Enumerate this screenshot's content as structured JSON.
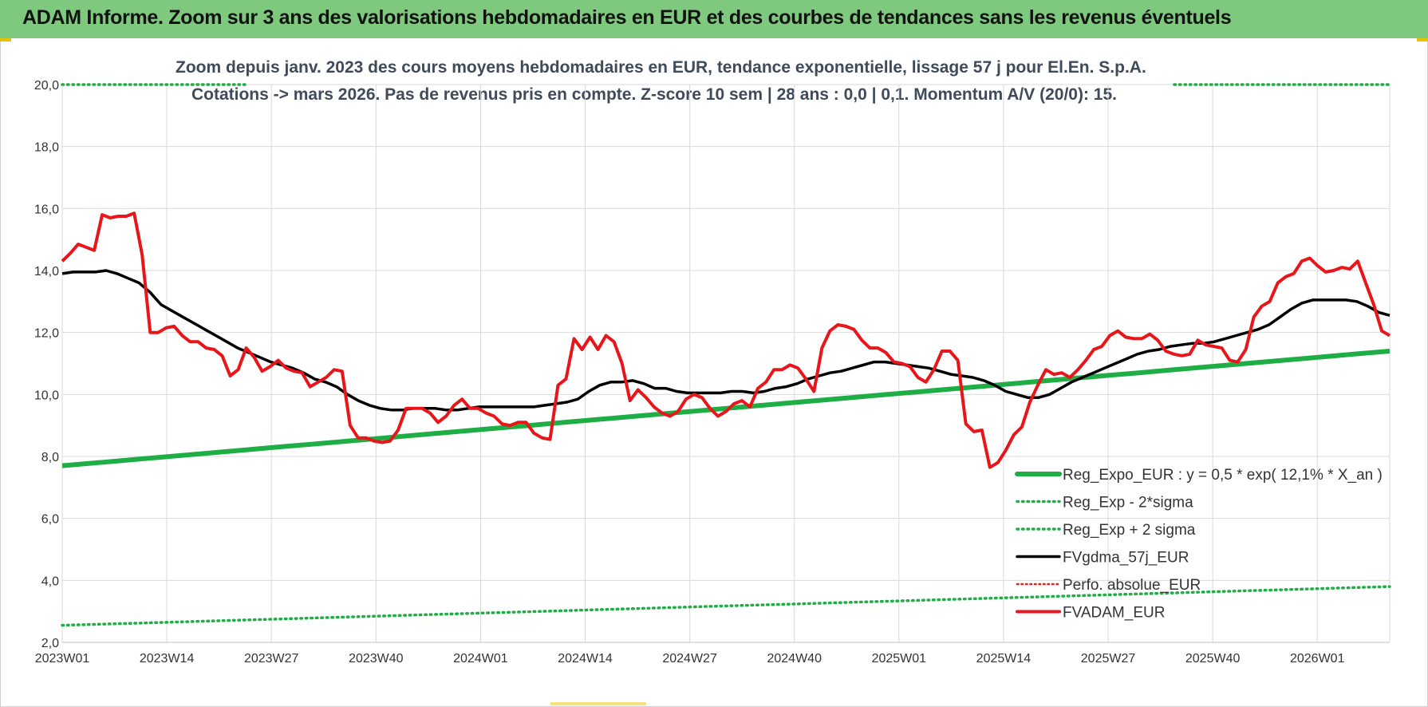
{
  "header": {
    "title": "ADAM Informe. Zoom sur 3 ans des valorisations hebdomadaires en EUR et des courbes de tendances sans les revenus éventuels"
  },
  "chart_data": {
    "type": "line",
    "title_line1": "Zoom depuis janv. 2023 des cours moyens hebdomadaires en EUR, tendance exponentielle, lissage 57 j pour El.En. S.p.A.",
    "title_line2": "Cotations -> mars 2026. Pas de revenus pris en compte. Z-score 10 sem | 28 ans : 0,0 | 0,1. Momentum A/V (20/0): 15.",
    "ylim": [
      2.0,
      20.0
    ],
    "yticks": [
      "2,0",
      "4,0",
      "6,0",
      "8,0",
      "10,0",
      "12,0",
      "14,0",
      "16,0",
      "18,0",
      "20,0"
    ],
    "xticks": [
      "2023W01",
      "2023W14",
      "2023W27",
      "2023W40",
      "2024W01",
      "2024W14",
      "2024W27",
      "2024W40",
      "2025W01",
      "2025W14",
      "2025W27",
      "2025W40",
      "2026W01"
    ],
    "grid": true,
    "legend_position": "bottom-right",
    "colors": {
      "reg_expo": "#1fae45",
      "sigma": "#1fae45",
      "fvgdma": "#000000",
      "perfo": "#e02020",
      "fvadam": "#e8161b"
    },
    "series": [
      {
        "name": "Reg_Expo_EUR : y = 0,5 * exp( 12,1% *  X_an )",
        "style": "solid-thick",
        "values": [
          7.7,
          7.8,
          7.9,
          8.0,
          8.1,
          8.2,
          8.3,
          8.4,
          8.5,
          8.6,
          8.7,
          8.8,
          8.9,
          9.0,
          9.1,
          9.2,
          9.3,
          9.4,
          9.5,
          9.6,
          9.7,
          9.8,
          9.9,
          10.0,
          10.1,
          10.2,
          10.3,
          10.4,
          10.5,
          10.6,
          10.7,
          10.8,
          10.9,
          11.0,
          11.1,
          11.2,
          11.3,
          11.4
        ]
      },
      {
        "name": "Reg_Exp - 2*sigma",
        "style": "dotted",
        "values": [
          2.55,
          2.6,
          2.65,
          2.7,
          2.75,
          2.8,
          2.85,
          2.9,
          2.95,
          3.0,
          3.05,
          3.1,
          3.15,
          3.2,
          3.25,
          3.3,
          3.35,
          3.4,
          3.45,
          3.5,
          3.55,
          3.6,
          3.65,
          3.7,
          3.75,
          3.8
        ]
      },
      {
        "name": "Reg_Exp + 2 sigma",
        "style": "dotted",
        "values": [
          20.0,
          20.0
        ]
      },
      {
        "name": "FVgdma_57j_EUR",
        "style": "solid",
        "values": [
          13.9,
          13.95,
          13.95,
          13.95,
          14.0,
          13.9,
          13.75,
          13.6,
          13.3,
          12.9,
          12.7,
          12.5,
          12.3,
          12.1,
          11.9,
          11.7,
          11.5,
          11.35,
          11.2,
          11.05,
          10.95,
          10.85,
          10.7,
          10.5,
          10.4,
          10.25,
          10.0,
          9.8,
          9.65,
          9.55,
          9.5,
          9.5,
          9.55,
          9.55,
          9.55,
          9.5,
          9.5,
          9.55,
          9.6,
          9.6,
          9.6,
          9.6,
          9.6,
          9.6,
          9.65,
          9.7,
          9.75,
          9.85,
          10.1,
          10.3,
          10.4,
          10.4,
          10.45,
          10.35,
          10.2,
          10.2,
          10.1,
          10.05,
          10.05,
          10.05,
          10.05,
          10.1,
          10.1,
          10.05,
          10.1,
          10.2,
          10.25,
          10.35,
          10.5,
          10.6,
          10.7,
          10.75,
          10.85,
          10.95,
          11.05,
          11.05,
          11.0,
          10.95,
          10.9,
          10.85,
          10.75,
          10.65,
          10.6,
          10.55,
          10.45,
          10.3,
          10.1,
          10.0,
          9.9,
          9.9,
          10.0,
          10.2,
          10.4,
          10.55,
          10.7,
          10.85,
          11.0,
          11.15,
          11.3,
          11.4,
          11.45,
          11.55,
          11.6,
          11.65,
          11.65,
          11.7,
          11.8,
          11.9,
          12.0,
          12.1,
          12.25,
          12.5,
          12.75,
          12.95,
          13.05,
          13.05,
          13.05,
          13.05,
          13.0,
          12.85,
          12.65,
          12.55
        ]
      },
      {
        "name": "Perfo. absolue_EUR",
        "style": "dotted",
        "values": []
      },
      {
        "name": "FVADAM_EUR",
        "style": "solid-thick",
        "values": [
          14.3,
          14.55,
          14.85,
          14.75,
          14.65,
          15.8,
          15.7,
          15.75,
          15.75,
          15.85,
          14.5,
          12.0,
          12.0,
          12.15,
          12.2,
          11.9,
          11.7,
          11.7,
          11.5,
          11.45,
          11.25,
          10.6,
          10.8,
          11.5,
          11.2,
          10.75,
          10.9,
          11.1,
          10.85,
          10.75,
          10.7,
          10.25,
          10.4,
          10.55,
          10.8,
          10.75,
          9.0,
          8.6,
          8.6,
          8.5,
          8.45,
          8.5,
          8.85,
          9.55,
          9.55,
          9.55,
          9.4,
          9.1,
          9.3,
          9.65,
          9.85,
          9.55,
          9.55,
          9.4,
          9.3,
          9.05,
          9.0,
          9.1,
          9.1,
          8.75,
          8.6,
          8.55,
          10.3,
          10.5,
          11.8,
          11.45,
          11.85,
          11.45,
          11.9,
          11.7,
          11.0,
          9.8,
          10.15,
          9.9,
          9.6,
          9.4,
          9.3,
          9.45,
          9.85,
          10.0,
          9.9,
          9.55,
          9.3,
          9.45,
          9.7,
          9.8,
          9.6,
          10.2,
          10.4,
          10.8,
          10.8,
          10.95,
          10.85,
          10.5,
          10.1,
          11.5,
          12.05,
          12.25,
          12.2,
          12.1,
          11.75,
          11.5,
          11.5,
          11.35,
          11.05,
          11.0,
          10.9,
          10.55,
          10.4,
          10.8,
          11.4,
          11.4,
          11.1,
          9.05,
          8.8,
          8.85,
          7.65,
          7.8,
          8.2,
          8.7,
          8.95,
          9.75,
          10.3,
          10.8,
          10.65,
          10.7,
          10.55,
          10.8,
          11.1,
          11.45,
          11.55,
          11.9,
          12.05,
          11.85,
          11.8,
          11.8,
          11.95,
          11.75,
          11.4,
          11.3,
          11.25,
          11.3,
          11.75,
          11.6,
          11.55,
          11.5,
          11.1,
          11.05,
          11.45,
          12.5,
          12.85,
          13.0,
          13.6,
          13.8,
          13.9,
          14.3,
          14.4,
          14.15,
          13.95,
          14.0,
          14.1,
          14.05,
          14.3,
          13.6,
          12.9,
          12.05,
          11.9
        ]
      }
    ]
  }
}
